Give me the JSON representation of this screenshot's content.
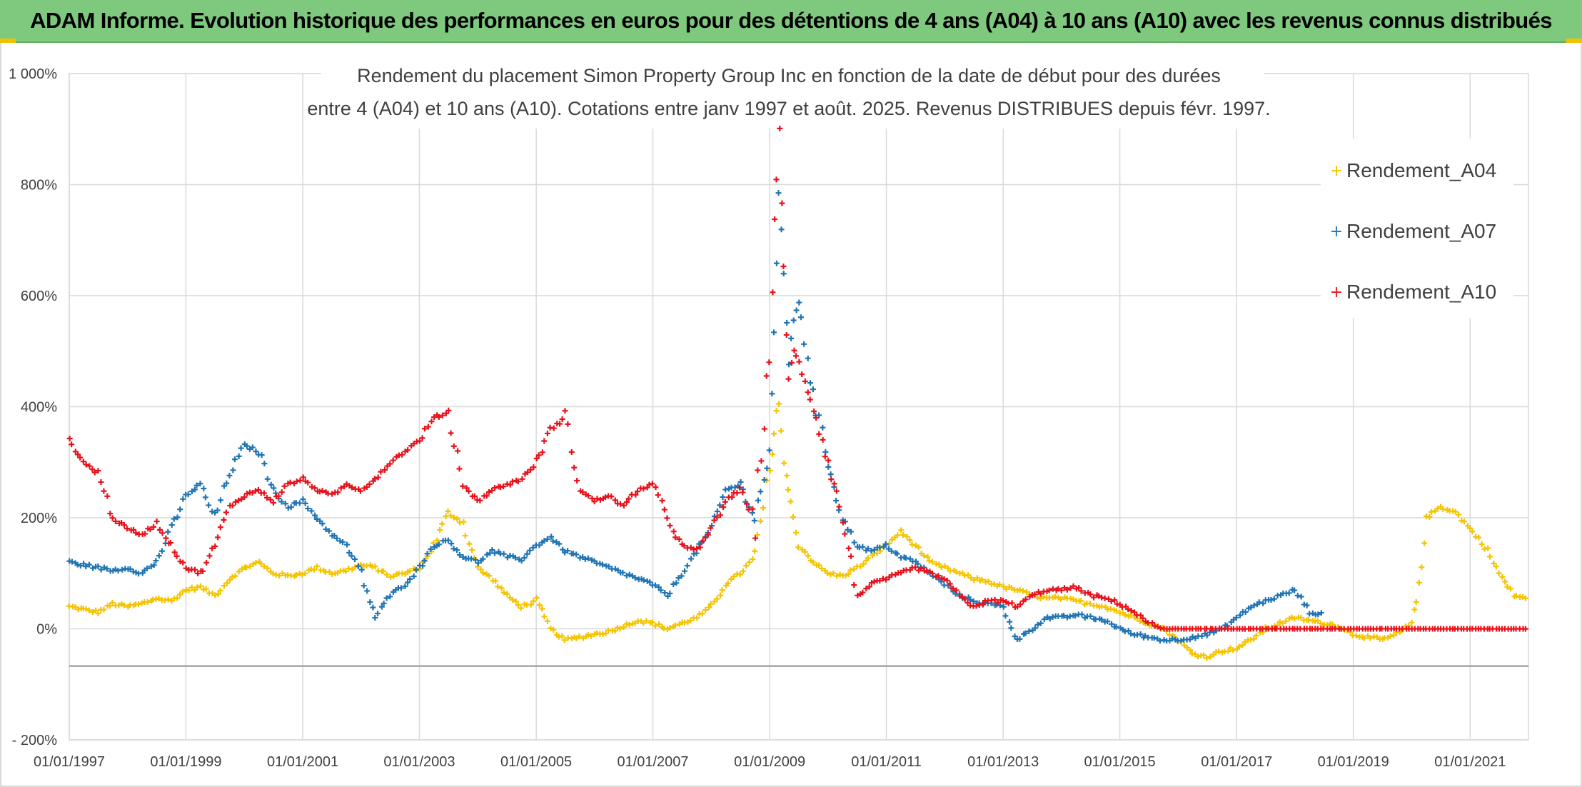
{
  "header": {
    "banner_title": "ADAM Informe. Evolution historique des performances en euros pour des détentions de 4 ans (A04) à 10 ans (A10) avec les revenus connus distribués"
  },
  "colors": {
    "banner_bg": "#7fc97f",
    "accent": "#f2c200",
    "Rendement_A04": "#f5c400",
    "Rendement_A07": "#1f74b4",
    "Rendement_A10": "#e8111b"
  },
  "chart_data": {
    "type": "scatter",
    "marker": "plus",
    "title_lines": [
      "Rendement du placement Simon Property Group Inc en fonction de la date de début pour des durées",
      "entre 4 (A04) et 10 ans (A10). Cotations entre janv 1997 et août. 2025. Revenus DISTRIBUES depuis févr. 1997."
    ],
    "xlabel": "",
    "ylabel": "",
    "x_range": [
      "1997-01-01",
      "2022-01-01"
    ],
    "x_ticks": [
      "01/01/1997",
      "01/01/1999",
      "01/01/2001",
      "01/01/2003",
      "01/01/2005",
      "01/01/2007",
      "01/01/2009",
      "01/01/2011",
      "01/01/2013",
      "01/01/2015",
      "01/01/2017",
      "01/01/2019",
      "01/01/2021"
    ],
    "y_range": [
      -200,
      1000
    ],
    "y_ticks": [
      -200,
      0,
      200,
      400,
      600,
      800,
      1000
    ],
    "y_tick_labels": [
      "- 200%",
      "0%",
      "200%",
      "400%",
      "600%",
      "800%",
      "1 000%"
    ],
    "y_reference_line": -67,
    "grid": true,
    "legend_position": "top-right",
    "legend": [
      "Rendement_A04",
      "Rendement_A07",
      "Rendement_A10"
    ],
    "series": [
      {
        "name": "Rendement_A04",
        "x": [
          "1997-01-01",
          "1997-04-01",
          "1997-07-01",
          "1997-10-01",
          "1998-01-01",
          "1998-04-01",
          "1998-07-01",
          "1998-10-01",
          "1999-01-01",
          "1999-04-01",
          "1999-07-01",
          "1999-10-01",
          "2000-01-01",
          "2000-04-01",
          "2000-07-01",
          "2000-10-01",
          "2001-01-01",
          "2001-04-01",
          "2001-07-01",
          "2001-10-01",
          "2002-01-01",
          "2002-04-01",
          "2002-07-01",
          "2002-10-01",
          "2003-01-01",
          "2003-04-01",
          "2003-07-01",
          "2003-10-01",
          "2004-01-01",
          "2004-04-01",
          "2004-07-01",
          "2004-10-01",
          "2005-01-01",
          "2005-04-01",
          "2005-07-01",
          "2005-10-01",
          "2006-01-01",
          "2006-04-01",
          "2006-07-01",
          "2006-10-01",
          "2007-01-01",
          "2007-04-01",
          "2007-07-01",
          "2007-10-01",
          "2008-01-01",
          "2008-04-01",
          "2008-07-01",
          "2008-10-01",
          "2009-01-01",
          "2009-02-01",
          "2009-03-01",
          "2009-04-01",
          "2009-05-01",
          "2009-06-01",
          "2009-07-01",
          "2009-10-01",
          "2010-01-01",
          "2010-04-01",
          "2010-07-01",
          "2010-10-01",
          "2011-01-01",
          "2011-04-01",
          "2011-07-01",
          "2011-10-01",
          "2012-01-01",
          "2012-04-01",
          "2012-07-01",
          "2012-10-01",
          "2013-01-01",
          "2013-04-01",
          "2013-07-01",
          "2013-10-01",
          "2014-01-01",
          "2014-04-01",
          "2014-07-01",
          "2014-10-01",
          "2015-01-01",
          "2015-04-01",
          "2015-07-01",
          "2015-10-01",
          "2016-01-01",
          "2016-04-01",
          "2016-07-01",
          "2016-10-01",
          "2017-01-01",
          "2017-04-01",
          "2017-07-01",
          "2017-10-01",
          "2018-01-01",
          "2018-04-01",
          "2018-07-01",
          "2018-10-01",
          "2019-01-01",
          "2019-04-01",
          "2019-07-01",
          "2019-10-01",
          "2020-01-01",
          "2020-02-01",
          "2020-03-01",
          "2020-04-01",
          "2020-07-01",
          "2020-10-01",
          "2021-01-01",
          "2021-04-01",
          "2021-07-01",
          "2021-10-01",
          "2022-01-01"
        ],
        "y": [
          40,
          35,
          30,
          45,
          40,
          45,
          55,
          50,
          70,
          75,
          60,
          90,
          110,
          120,
          100,
          95,
          100,
          110,
          100,
          105,
          115,
          110,
          95,
          100,
          110,
          150,
          210,
          190,
          110,
          90,
          60,
          40,
          50,
          0,
          -20,
          -15,
          -10,
          -5,
          5,
          15,
          10,
          0,
          10,
          20,
          40,
          80,
          100,
          130,
          280,
          350,
          420,
          300,
          250,
          200,
          150,
          120,
          100,
          95,
          110,
          130,
          150,
          175,
          150,
          120,
          110,
          100,
          90,
          85,
          75,
          70,
          60,
          55,
          55,
          50,
          45,
          40,
          30,
          20,
          10,
          0,
          -20,
          -45,
          -50,
          -40,
          -35,
          -20,
          0,
          10,
          20,
          15,
          10,
          5,
          -10,
          -15,
          -20,
          -10,
          10,
          50,
          120,
          200,
          220,
          210,
          180,
          150,
          100,
          60,
          55
        ]
      },
      {
        "name": "Rendement_A07",
        "x": [
          "1997-01-01",
          "1997-04-01",
          "1997-07-01",
          "1997-10-01",
          "1998-01-01",
          "1998-04-01",
          "1998-07-01",
          "1998-10-01",
          "1999-01-01",
          "1999-04-01",
          "1999-07-01",
          "1999-10-01",
          "2000-01-01",
          "2000-04-01",
          "2000-07-01",
          "2000-10-01",
          "2001-01-01",
          "2001-04-01",
          "2001-07-01",
          "2001-10-01",
          "2002-01-01",
          "2002-04-01",
          "2002-07-01",
          "2002-10-01",
          "2003-01-01",
          "2003-04-01",
          "2003-07-01",
          "2003-10-01",
          "2004-01-01",
          "2004-04-01",
          "2004-07-01",
          "2004-10-01",
          "2005-01-01",
          "2005-04-01",
          "2005-07-01",
          "2005-10-01",
          "2006-01-01",
          "2006-04-01",
          "2006-07-01",
          "2006-10-01",
          "2007-01-01",
          "2007-04-01",
          "2007-07-01",
          "2007-10-01",
          "2008-01-01",
          "2008-04-01",
          "2008-07-01",
          "2008-10-01",
          "2009-01-01",
          "2009-02-01",
          "2009-03-01",
          "2009-04-01",
          "2009-05-01",
          "2009-06-01",
          "2009-07-01",
          "2009-10-01",
          "2010-01-01",
          "2010-04-01",
          "2010-07-01",
          "2010-10-01",
          "2011-01-01",
          "2011-04-01",
          "2011-07-01",
          "2011-10-01",
          "2012-01-01",
          "2012-04-01",
          "2012-07-01",
          "2012-10-01",
          "2013-01-01",
          "2013-04-01",
          "2013-07-01",
          "2013-10-01",
          "2014-01-01",
          "2014-04-01",
          "2014-07-01",
          "2014-10-01",
          "2015-01-01",
          "2015-04-01",
          "2015-07-01",
          "2015-10-01",
          "2016-01-01",
          "2016-04-01",
          "2016-07-01",
          "2016-10-01",
          "2017-01-01",
          "2017-04-01",
          "2017-07-01",
          "2017-10-01",
          "2018-01-01",
          "2018-04-01",
          "2018-07-01"
        ],
        "y": [
          120,
          115,
          110,
          105,
          110,
          100,
          120,
          180,
          240,
          260,
          200,
          280,
          330,
          320,
          250,
          220,
          230,
          200,
          170,
          150,
          100,
          20,
          60,
          80,
          110,
          150,
          160,
          130,
          120,
          140,
          130,
          125,
          150,
          165,
          140,
          130,
          120,
          110,
          100,
          90,
          80,
          60,
          100,
          140,
          180,
          250,
          260,
          200,
          320,
          500,
          780,
          650,
          480,
          550,
          600,
          420,
          300,
          200,
          150,
          140,
          150,
          130,
          120,
          100,
          80,
          60,
          50,
          45,
          40,
          -20,
          0,
          20,
          20,
          25,
          20,
          15,
          0,
          -10,
          -15,
          -20,
          -20,
          -15,
          -10,
          0,
          20,
          40,
          50,
          60,
          70,
          30,
          25
        ]
      },
      {
        "name": "Rendement_A10",
        "x": [
          "1997-01-01",
          "1997-04-01",
          "1997-07-01",
          "1997-10-01",
          "1998-01-01",
          "1998-04-01",
          "1998-07-01",
          "1998-10-01",
          "1999-01-01",
          "1999-04-01",
          "1999-07-01",
          "1999-10-01",
          "2000-01-01",
          "2000-04-01",
          "2000-07-01",
          "2000-10-01",
          "2001-01-01",
          "2001-04-01",
          "2001-07-01",
          "2001-10-01",
          "2002-01-01",
          "2002-04-01",
          "2002-07-01",
          "2002-10-01",
          "2003-01-01",
          "2003-04-01",
          "2003-07-01",
          "2003-10-01",
          "2004-01-01",
          "2004-04-01",
          "2004-07-01",
          "2004-10-01",
          "2005-01-01",
          "2005-04-01",
          "2005-07-01",
          "2005-10-01",
          "2006-01-01",
          "2006-04-01",
          "2006-07-01",
          "2006-10-01",
          "2007-01-01",
          "2007-04-01",
          "2007-07-01",
          "2007-10-01",
          "2008-01-01",
          "2008-04-01",
          "2008-07-01",
          "2008-10-01",
          "2009-01-01",
          "2009-02-01",
          "2009-03-01",
          "2009-04-01",
          "2009-05-01",
          "2009-06-01",
          "2009-07-01",
          "2009-10-01",
          "2010-01-01",
          "2010-04-01",
          "2010-07-01",
          "2010-10-01",
          "2011-01-01",
          "2011-04-01",
          "2011-07-01",
          "2011-10-01",
          "2012-01-01",
          "2012-04-01",
          "2012-07-01",
          "2012-10-01",
          "2013-01-01",
          "2013-04-01",
          "2013-07-01",
          "2013-10-01",
          "2014-01-01",
          "2014-04-01",
          "2014-07-01",
          "2014-10-01",
          "2015-01-01",
          "2015-04-01",
          "2015-07-01",
          "2015-10-01",
          "2016-01-01",
          "2016-04-01",
          "2016-07-01",
          "2016-10-01",
          "2017-01-01",
          "2017-04-01",
          "2017-07-01",
          "2017-10-01",
          "2018-01-01",
          "2018-04-01",
          "2018-07-01",
          "2018-10-01",
          "2019-01-01",
          "2019-04-01",
          "2019-07-01",
          "2019-10-01",
          "2020-01-01",
          "2020-04-01",
          "2020-07-01",
          "2020-10-01",
          "2021-01-01",
          "2021-04-01",
          "2021-07-01",
          "2021-10-01",
          "2022-01-01"
        ],
        "y": [
          340,
          300,
          280,
          200,
          180,
          170,
          190,
          150,
          110,
          100,
          150,
          220,
          240,
          250,
          230,
          260,
          270,
          250,
          240,
          260,
          250,
          270,
          300,
          320,
          340,
          380,
          390,
          260,
          230,
          250,
          260,
          270,
          300,
          360,
          380,
          250,
          230,
          240,
          220,
          250,
          260,
          200,
          150,
          140,
          180,
          230,
          250,
          200,
          500,
          720,
          880,
          650,
          450,
          500,
          480,
          400,
          300,
          200,
          60,
          80,
          90,
          100,
          110,
          100,
          90,
          60,
          40,
          50,
          50,
          40,
          60,
          70,
          70,
          75,
          60,
          55,
          45,
          30,
          10,
          0,
          0,
          0,
          0,
          0,
          0,
          0,
          0,
          0,
          0,
          0,
          0,
          0,
          0,
          0,
          0,
          0,
          0,
          0,
          0,
          0,
          0,
          0,
          0,
          0,
          0
        ]
      }
    ]
  }
}
